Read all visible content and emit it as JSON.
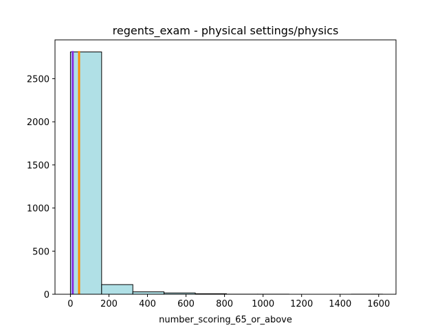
{
  "chart_data": {
    "type": "bar",
    "title": "regents_exam - physical settings/physics",
    "xlabel": "number_scoring_65_or_above",
    "ylabel": "",
    "xlim": [
      -80,
      1690
    ],
    "ylim": [
      0,
      2950
    ],
    "x_ticks": [
      0,
      200,
      400,
      600,
      800,
      1000,
      1200,
      1400,
      1600
    ],
    "y_ticks": [
      0,
      500,
      1000,
      1500,
      2000,
      2500
    ],
    "bins": [
      {
        "x0": 0,
        "x1": 162,
        "count": 2810
      },
      {
        "x0": 162,
        "x1": 324,
        "count": 112
      },
      {
        "x0": 324,
        "x1": 486,
        "count": 28
      },
      {
        "x0": 486,
        "x1": 648,
        "count": 15
      },
      {
        "x0": 648,
        "x1": 810,
        "count": 6
      },
      {
        "x0": 810,
        "x1": 972,
        "count": 1
      },
      {
        "x0": 972,
        "x1": 1134,
        "count": 1
      },
      {
        "x0": 1134,
        "x1": 1296,
        "count": 0
      },
      {
        "x0": 1296,
        "x1": 1458,
        "count": 0
      },
      {
        "x0": 1458,
        "x1": 1620,
        "count": 1
      }
    ],
    "vlines": [
      {
        "x": 12,
        "height": 2820,
        "color": "#8a2be2"
      },
      {
        "x": 45,
        "height": 2820,
        "color": "#ff8c00"
      }
    ],
    "bar_color": "#b0e0e6",
    "edge_color": "#000000",
    "grid": false
  }
}
